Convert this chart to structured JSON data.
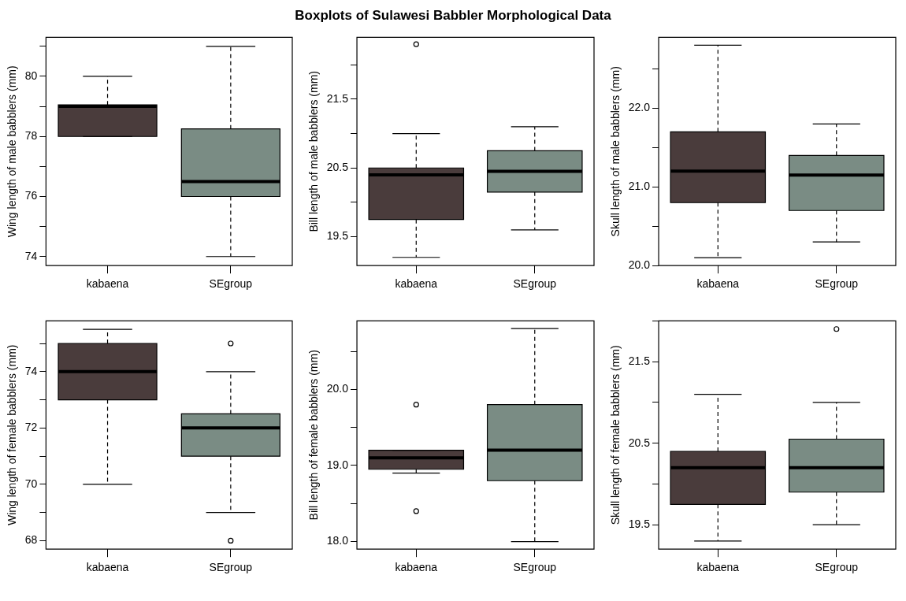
{
  "chart_data": [
    {
      "type": "box",
      "ylabel": "Wing length of male babblers (mm)",
      "categories": [
        "kabaena",
        "SEgroup"
      ],
      "colors": [
        "#4a3c3c",
        "#7a8c84"
      ],
      "ylim": [
        73.7,
        81.3
      ],
      "yticks": [
        74,
        {
          "value": 75,
          "label": null
        },
        76,
        {
          "value": 77,
          "label": null
        },
        78,
        {
          "value": 79,
          "label": null
        },
        80,
        {
          "value": 81,
          "label": null
        }
      ],
      "boxes": [
        {
          "low": 78,
          "q1": 78,
          "median": 79,
          "q3": 79.05,
          "high": 80
        },
        {
          "low": 74,
          "q1": 76,
          "median": 76.5,
          "q3": 78.25,
          "high": 81
        }
      ]
    },
    {
      "type": "box",
      "title": "Boxplots of Sulawesi Babbler Morphological Data",
      "ylabel": "Bill length of male babblers (mm)",
      "categories": [
        "kabaena",
        "SEgroup"
      ],
      "colors": [
        "#4a3c3c",
        "#7a8c84"
      ],
      "ylim": [
        19.08,
        22.4
      ],
      "yticks": [
        19.5,
        {
          "value": 20,
          "label": null
        },
        20.5,
        {
          "value": 21,
          "label": null
        },
        21.5,
        {
          "value": 22,
          "label": null
        }
      ],
      "boxes": [
        {
          "low": 19.2,
          "q1": 19.75,
          "median": 20.4,
          "q3": 20.5,
          "high": 21,
          "outliers": [
            22.3
          ]
        },
        {
          "low": 19.6,
          "q1": 20.15,
          "median": 20.45,
          "q3": 20.75,
          "high": 21.1
        }
      ]
    },
    {
      "type": "box",
      "ylabel": "Skull length of male babblers (mm)",
      "categories": [
        "kabaena",
        "SEgroup"
      ],
      "colors": [
        "#4a3c3c",
        "#7a8c84"
      ],
      "ylim": [
        20,
        22.9
      ],
      "yticks": [
        {
          "value": 20,
          "label": "20.0"
        },
        {
          "value": 20.5,
          "label": null
        },
        {
          "value": 21,
          "label": "21.0"
        },
        {
          "value": 21.5,
          "label": null
        },
        {
          "value": 22,
          "label": "22.0"
        },
        {
          "value": 22.5,
          "label": null
        }
      ],
      "boxes": [
        {
          "low": 20.1,
          "q1": 20.8,
          "median": 21.2,
          "q3": 21.7,
          "high": 22.8
        },
        {
          "low": 20.3,
          "q1": 20.7,
          "median": 21.15,
          "q3": 21.4,
          "high": 21.8
        }
      ]
    },
    {
      "type": "box",
      "ylabel": "Wing length of female babblers (mm)",
      "categories": [
        "kabaena",
        "SEgroup"
      ],
      "colors": [
        "#4a3c3c",
        "#7a8c84"
      ],
      "ylim": [
        67.7,
        75.8
      ],
      "yticks": [
        68,
        {
          "value": 69,
          "label": null
        },
        70,
        {
          "value": 71,
          "label": null
        },
        72,
        {
          "value": 73,
          "label": null
        },
        74,
        {
          "value": 75,
          "label": null
        }
      ],
      "boxes": [
        {
          "low": 70,
          "q1": 73,
          "median": 74,
          "q3": 75,
          "high": 75.5
        },
        {
          "low": 69,
          "q1": 71,
          "median": 72,
          "q3": 72.5,
          "high": 74,
          "outliers": [
            75,
            68
          ]
        }
      ]
    },
    {
      "type": "box",
      "ylabel": "Bill length of female babblers (mm)",
      "categories": [
        "kabaena",
        "SEgroup"
      ],
      "colors": [
        "#4a3c3c",
        "#7a8c84"
      ],
      "ylim": [
        17.9,
        20.9
      ],
      "yticks": [
        {
          "value": 18,
          "label": "18.0"
        },
        {
          "value": 18.5,
          "label": null
        },
        {
          "value": 19,
          "label": "19.0"
        },
        {
          "value": 19.5,
          "label": null
        },
        {
          "value": 20,
          "label": "20.0"
        },
        {
          "value": 20.5,
          "label": null
        }
      ],
      "boxes": [
        {
          "low": 18.9,
          "q1": 18.95,
          "median": 19.1,
          "q3": 19.2,
          "high": 19.2,
          "outliers": [
            19.8,
            18.4
          ]
        },
        {
          "low": 18,
          "q1": 18.8,
          "median": 19.2,
          "q3": 19.8,
          "high": 20.8
        }
      ]
    },
    {
      "type": "box",
      "ylabel": "Skull length of female babblers (mm)",
      "categories": [
        "kabaena",
        "SEgroup"
      ],
      "colors": [
        "#4a3c3c",
        "#7a8c84"
      ],
      "ylim": [
        19.2,
        22
      ],
      "yticks": [
        19.5,
        {
          "value": 20,
          "label": null
        },
        20.5,
        {
          "value": 21,
          "label": null
        },
        21.5,
        {
          "value": 22,
          "label": null
        }
      ],
      "boxes": [
        {
          "low": 19.3,
          "q1": 19.75,
          "median": 20.2,
          "q3": 20.4,
          "high": 21.1
        },
        {
          "low": 19.5,
          "q1": 19.9,
          "median": 20.2,
          "q3": 20.55,
          "high": 21,
          "outliers": [
            21.9
          ]
        }
      ]
    }
  ]
}
